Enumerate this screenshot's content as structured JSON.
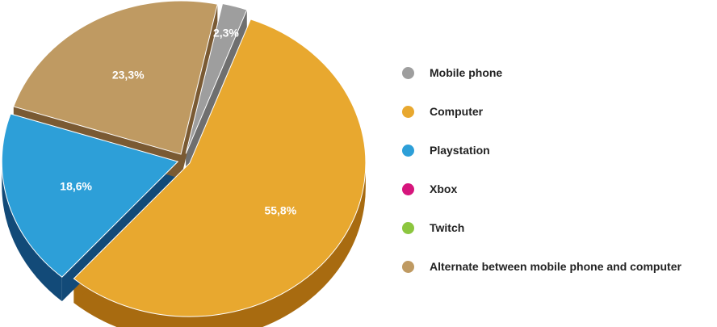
{
  "chart_data": {
    "type": "pie",
    "title": "",
    "three_d": true,
    "legend_position": "right",
    "slices": [
      {
        "name": "Mobile phone",
        "value": 2.3,
        "label": "2,3%",
        "color": "#9e9e9e",
        "side_color": "#6f6f6f"
      },
      {
        "name": "Computer",
        "value": 55.8,
        "label": "55,8%",
        "color": "#e8a82f",
        "side_color": "#a86b10"
      },
      {
        "name": "Playstation",
        "value": 18.6,
        "label": "18,6%",
        "color": "#2d9fd8",
        "side_color": "#124a78"
      },
      {
        "name": "Xbox",
        "value": 0,
        "label": "",
        "color": "#d6157c",
        "side_color": "#8a0d50"
      },
      {
        "name": "Twitch",
        "value": 0,
        "label": "",
        "color": "#8cc63f",
        "side_color": "#5a8a22"
      },
      {
        "name": "Alternate between mobile phone and computer",
        "value": 23.3,
        "label": "23,3%",
        "color": "#bf9a62",
        "side_color": "#7a5a33"
      }
    ]
  },
  "legend": {
    "items": [
      {
        "label": "Mobile phone",
        "color": "#9e9e9e"
      },
      {
        "label": "Computer",
        "color": "#e8a82f"
      },
      {
        "label": "Playstation",
        "color": "#2d9fd8"
      },
      {
        "label": "Xbox",
        "color": "#d6157c"
      },
      {
        "label": "Twitch",
        "color": "#8cc63f"
      },
      {
        "label": "Alternate between mobile phone and computer",
        "color": "#bf9a62"
      }
    ]
  }
}
